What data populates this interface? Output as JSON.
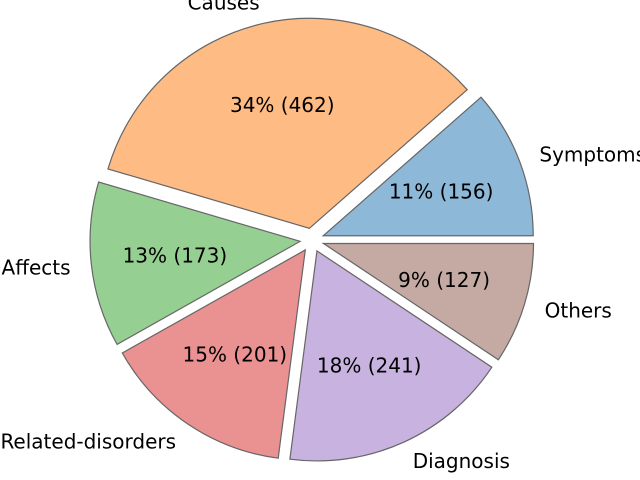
{
  "chart_data": {
    "type": "pie",
    "title": "",
    "slices": [
      {
        "name": "Symptoms",
        "value": 156,
        "percent_label": "11% (156)",
        "color": "#8db8d8"
      },
      {
        "name": "Causes",
        "value": 462,
        "percent_label": "34% (462)",
        "color": "#ffbb84"
      },
      {
        "name": "Affects",
        "value": 173,
        "percent_label": "13% (173)",
        "color": "#95d092"
      },
      {
        "name": "Related-disorders",
        "value": 201,
        "percent_label": "15% (201)",
        "color": "#ea9192"
      },
      {
        "name": "Diagnosis",
        "value": 241,
        "percent_label": "18% (241)",
        "color": "#c8b2df"
      },
      {
        "name": "Others",
        "value": 127,
        "percent_label": "9% (127)",
        "color": "#c4aaa3"
      }
    ],
    "start_angle_deg": 0,
    "direction": "counterclockwise",
    "exploded": true,
    "legend": "none"
  }
}
